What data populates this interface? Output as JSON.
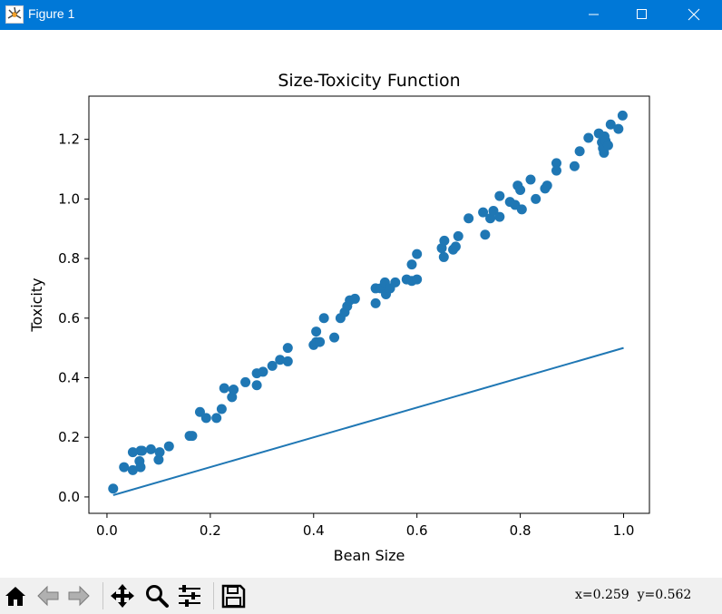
{
  "window": {
    "title": "Figure 1"
  },
  "toolbar": {
    "tools": [
      "home-icon",
      "back-icon",
      "forward-icon",
      "pan-icon",
      "zoom-icon",
      "configure-icon",
      "save-icon"
    ],
    "coords_text": "x=0.259  y=0.562"
  },
  "colors": {
    "titlebar": "#0078d7",
    "series": "#1f77b4"
  },
  "chart_data": {
    "type": "scatter",
    "title": "Size-Toxicity Function",
    "xlabel": "Bean Size",
    "ylabel": "Toxicity",
    "xlim": [
      -0.035,
      1.05
    ],
    "ylim": [
      -0.055,
      1.345
    ],
    "xticks": [
      "0.0",
      "0.2",
      "0.4",
      "0.6",
      "0.8",
      "1.0"
    ],
    "yticks": [
      "0.0",
      "0.2",
      "0.4",
      "0.6",
      "0.8",
      "1.0",
      "1.2"
    ],
    "grid": false,
    "series": [
      {
        "kind": "scatter",
        "x": [
          0.012,
          0.033,
          0.05,
          0.05,
          0.063,
          0.065,
          0.065,
          0.068,
          0.085,
          0.1,
          0.102,
          0.12,
          0.16,
          0.165,
          0.18,
          0.192,
          0.212,
          0.222,
          0.227,
          0.242,
          0.245,
          0.245,
          0.268,
          0.29,
          0.29,
          0.302,
          0.32,
          0.335,
          0.35,
          0.35,
          0.4,
          0.405,
          0.405,
          0.412,
          0.42,
          0.44,
          0.452,
          0.46,
          0.465,
          0.47,
          0.48,
          0.52,
          0.52,
          0.53,
          0.538,
          0.54,
          0.548,
          0.558,
          0.58,
          0.59,
          0.59,
          0.6,
          0.6,
          0.648,
          0.652,
          0.653,
          0.67,
          0.675,
          0.68,
          0.7,
          0.728,
          0.732,
          0.742,
          0.748,
          0.76,
          0.76,
          0.78,
          0.79,
          0.795,
          0.8,
          0.803,
          0.82,
          0.83,
          0.848,
          0.852,
          0.87,
          0.87,
          0.905,
          0.915,
          0.932,
          0.952,
          0.958,
          0.96,
          0.962,
          0.963,
          0.965,
          0.97,
          0.975,
          0.99,
          0.998
        ],
        "y": [
          0.028,
          0.1,
          0.09,
          0.15,
          0.12,
          0.1,
          0.155,
          0.155,
          0.16,
          0.125,
          0.15,
          0.17,
          0.205,
          0.205,
          0.285,
          0.265,
          0.265,
          0.295,
          0.365,
          0.335,
          0.36,
          0.36,
          0.385,
          0.375,
          0.415,
          0.42,
          0.44,
          0.46,
          0.455,
          0.5,
          0.51,
          0.52,
          0.555,
          0.52,
          0.6,
          0.535,
          0.6,
          0.62,
          0.64,
          0.66,
          0.665,
          0.65,
          0.7,
          0.7,
          0.72,
          0.68,
          0.7,
          0.72,
          0.73,
          0.725,
          0.78,
          0.73,
          0.815,
          0.835,
          0.805,
          0.86,
          0.83,
          0.84,
          0.875,
          0.935,
          0.955,
          0.88,
          0.935,
          0.96,
          1.01,
          0.94,
          0.99,
          0.98,
          1.045,
          1.03,
          0.965,
          1.065,
          1.0,
          1.035,
          1.045,
          1.12,
          1.095,
          1.11,
          1.16,
          1.205,
          1.22,
          1.19,
          1.17,
          1.155,
          1.21,
          1.195,
          1.18,
          1.25,
          1.235,
          1.28
        ]
      },
      {
        "kind": "line",
        "x": [
          0.012,
          1.0
        ],
        "y": [
          0.006,
          0.5
        ]
      }
    ]
  }
}
